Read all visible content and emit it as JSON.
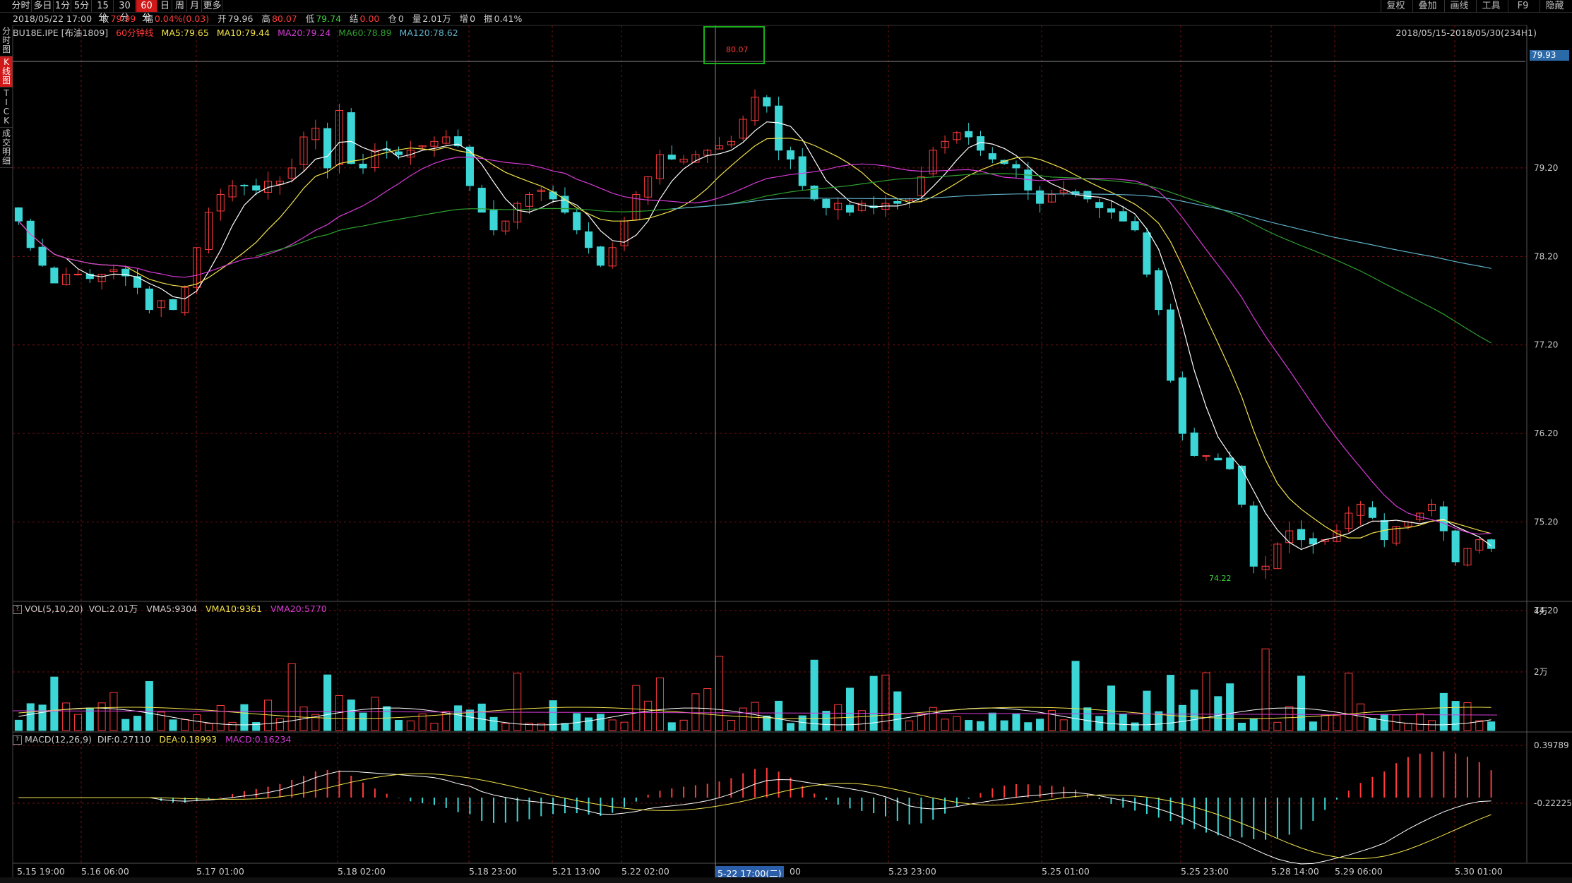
{
  "toolbar": {
    "periods": [
      "分时",
      "多日",
      "1分",
      "5分",
      "15分",
      "30分",
      "60分",
      "日",
      "周",
      "月",
      "更多"
    ],
    "active_period": "60分",
    "right_items": [
      "复权",
      "叠加",
      "画线",
      "工具",
      "F9",
      "隐藏"
    ]
  },
  "side_nav": [
    {
      "label": "分时图",
      "active": false
    },
    {
      "label": "K线图",
      "active": true
    },
    {
      "label": "TICK",
      "active": false
    },
    {
      "label": "成交明细",
      "active": false
    }
  ],
  "info": {
    "datetime": "2018/05/22 17:00",
    "close_label": "收",
    "close": "79.99",
    "change_label": "幅",
    "change": "0.04%(0.03)",
    "open_label": "开",
    "open": "79.96",
    "high_label": "高",
    "high": "80.07",
    "low_label": "低",
    "low": "79.74",
    "settle_label": "结",
    "settle": "0.00",
    "oi_label": "仓",
    "oi": "0",
    "vol_label": "量",
    "vol": "2.01万",
    "inc_label": "增",
    "inc": "0",
    "amp_label": "振",
    "amp": "0.41%"
  },
  "legend": {
    "symbol": "BU18E.IPE [布油1809]",
    "period_label": "60分钟线",
    "ma5": "MA5:79.65",
    "ma10": "MA10:79.44",
    "ma20": "MA20:79.24",
    "ma60": "MA60:78.89",
    "ma120": "MA120:78.62"
  },
  "date_range": "2018/05/15-2018/05/30(234H1)",
  "colors": {
    "up": "#ff3b3b",
    "down": "#3dd6d6",
    "ma5": "#ffffff",
    "ma10": "#f2e24a",
    "ma20": "#d63bd6",
    "ma60": "#2fa02f",
    "ma120": "#5fb0c8",
    "grid": "#7a1010",
    "active_tab": "#d01818",
    "highlight_box": "#19b019"
  },
  "price_axis": {
    "labels": [
      "79.20",
      "78.20",
      "77.20",
      "76.20",
      "75.20",
      "74.20"
    ],
    "current": "79.93",
    "max_marker": "80.07",
    "min_marker": "74.22"
  },
  "volume": {
    "legend_title": "VOL(5,10,20)",
    "vol": "VOL:2.01万",
    "vma5": "VMA5:9304",
    "vma10": "VMA10:9361",
    "vma20": "VMA20:5770",
    "axis_labels": [
      "4万",
      "2万"
    ]
  },
  "macd": {
    "legend_title": "MACD(12,26,9)",
    "dif": "DIF:0.27110",
    "dea": "DEA:0.18993",
    "macd": "MACD:0.16234",
    "axis_labels": [
      "0.39789",
      "-0.22225"
    ]
  },
  "time_axis": {
    "labels": [
      "5.15 19:00",
      "5.16 06:00",
      "5.17 01:00",
      "5.18 02:00",
      "5.18 23:00",
      "5.21 13:00",
      "5.22 02:00",
      "5-22 17:00(二)",
      "5.23 23:00",
      "5.25 01:00",
      "5.25 23:00",
      "5.28 14:00",
      "5.29 06:00",
      "5.30 01:00"
    ],
    "selected": "5-22 17:00(二)",
    "selected_suffix": "00"
  },
  "chart_data": {
    "type": "candlestick",
    "series_closes": [
      78.6,
      78.3,
      78.1,
      77.9,
      78.0,
      78.0,
      77.95,
      78.0,
      78.05,
      77.98,
      77.85,
      77.6,
      77.7,
      77.6,
      77.85,
      78.3,
      78.7,
      78.9,
      79.0,
      79.0,
      78.95,
      79.05,
      79.05,
      79.2,
      79.55,
      79.65,
      79.2,
      79.85,
      79.25,
      79.2,
      79.4,
      79.4,
      79.35,
      79.4,
      79.45,
      79.5,
      79.55,
      79.45,
      79.0,
      78.7,
      78.5,
      78.6,
      78.8,
      78.9,
      78.95,
      78.85,
      78.7,
      78.5,
      78.3,
      78.1,
      78.3,
      78.6,
      78.9,
      79.1,
      79.35,
      79.3,
      79.3,
      79.35,
      79.4,
      79.45,
      79.5,
      79.75,
      80.0,
      79.9,
      79.4,
      79.3,
      79.0,
      78.85,
      78.75,
      78.8,
      78.7,
      78.8,
      78.75,
      78.8,
      78.8,
      78.85,
      79.1,
      79.4,
      79.5,
      79.6,
      79.55,
      79.4,
      79.3,
      79.25,
      79.2,
      78.95,
      78.8,
      78.9,
      78.95,
      78.9,
      78.85,
      78.75,
      78.7,
      78.6,
      78.5,
      78.0,
      77.6,
      76.8,
      76.2,
      75.95,
      75.95,
      75.9,
      75.8,
      75.4,
      74.7,
      74.7,
      74.95,
      75.1,
      75.0,
      74.95,
      75.0,
      75.1,
      75.3,
      75.4,
      75.25,
      75.0,
      75.15,
      75.2,
      75.3,
      75.4,
      75.1,
      74.75,
      74.9,
      75.0,
      74.9
    ],
    "ylim": [
      74.0,
      80.3
    ],
    "price_ticks": [
      79.2,
      78.2,
      77.2,
      76.2,
      75.2,
      74.2
    ]
  }
}
